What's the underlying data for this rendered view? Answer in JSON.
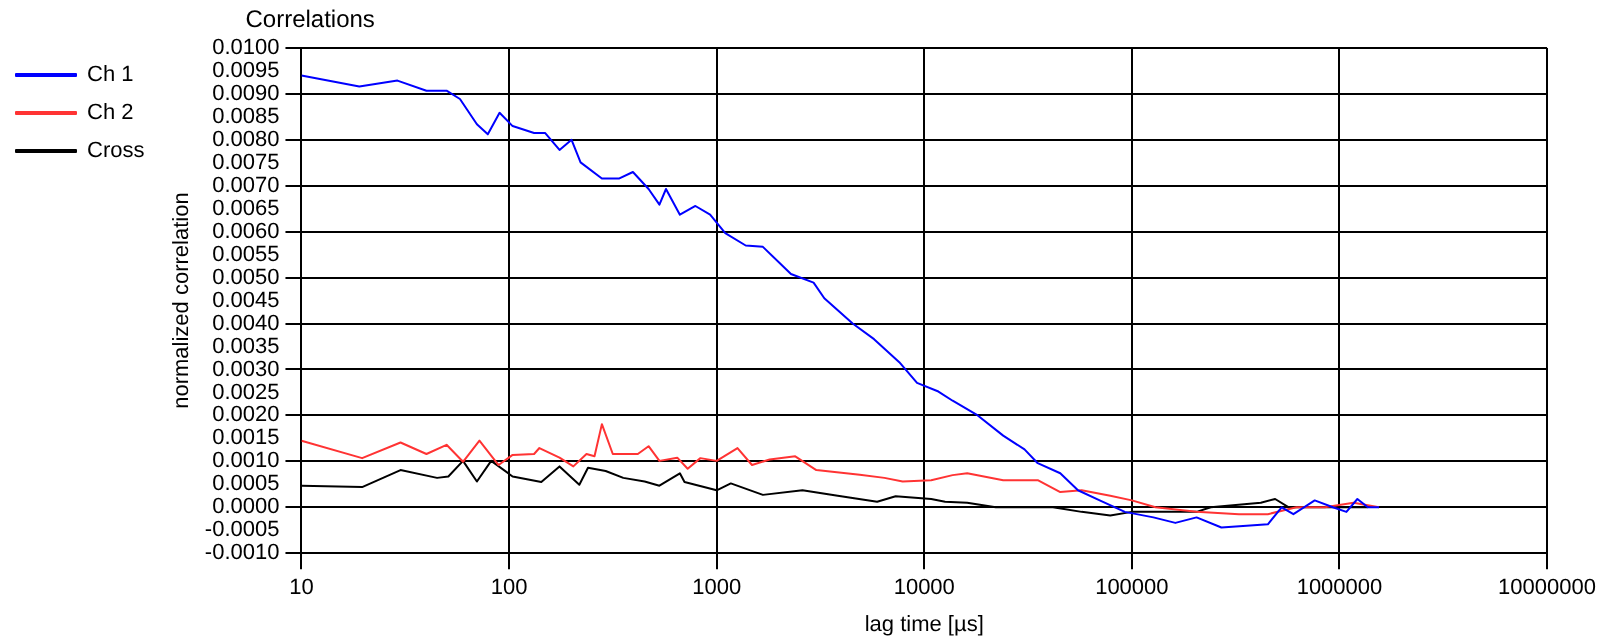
{
  "chart_data": {
    "type": "line",
    "title": "Correlations",
    "xlabel": "lag time [µs]",
    "ylabel": "normalized correlation",
    "log": "x",
    "grid": true,
    "legend": "top left",
    "xlim": [
      10,
      10000000
    ],
    "xticks": [
      10,
      100,
      1000,
      10000,
      100000,
      1000000,
      10000000
    ],
    "ylim": [
      -0.001,
      0.01
    ],
    "yticks": [
      {
        "value": -0.001,
        "label": "-0.0010"
      },
      {
        "value": -0.0005,
        "label": "-0.0005"
      },
      {
        "value": 0,
        "label": "0.0000"
      },
      {
        "value": 0.0005,
        "label": "0.0005"
      },
      {
        "value": 0.001,
        "label": "0.0010"
      },
      {
        "value": 0.0015,
        "label": "0.0015"
      },
      {
        "value": 0.002,
        "label": "0.0020"
      },
      {
        "value": 0.0025,
        "label": "0.0025"
      },
      {
        "value": 0.003,
        "label": "0.0030"
      },
      {
        "value": 0.0035,
        "label": "0.0035"
      },
      {
        "value": 0.004,
        "label": "0.0040"
      },
      {
        "value": 0.0045,
        "label": "0.0045"
      },
      {
        "value": 0.005,
        "label": "0.0050"
      },
      {
        "value": 0.0055,
        "label": "0.0055"
      },
      {
        "value": 0.006,
        "label": "0.0060"
      },
      {
        "value": 0.0065,
        "label": "0.0065"
      },
      {
        "value": 0.007,
        "label": "0.0070"
      },
      {
        "value": 0.0075,
        "label": "0.0075"
      },
      {
        "value": 0.008,
        "label": "0.0080"
      },
      {
        "value": 0.0085,
        "label": "0.0085"
      },
      {
        "value": 0.009,
        "label": "0.0090"
      },
      {
        "value": 0.0095,
        "label": "0.0095"
      },
      {
        "value": 0.01,
        "label": "0.0100"
      }
    ],
    "series": [
      {
        "name": "Ch 1",
        "color": "#0000ff",
        "x": [
          10,
          19,
          29,
          40,
          50,
          58,
          70,
          79,
          90,
          104,
          132,
          149,
          175,
          200,
          221,
          280,
          340,
          395,
          470,
          530,
          570,
          665,
          790,
          930,
          1100,
          1380,
          1670,
          2280,
          2930,
          3300,
          4520,
          5730,
          7580,
          9230,
          11700,
          13700,
          18100,
          24000,
          30400,
          35200,
          45200,
          55000,
          70000,
          92500,
          127000,
          162000,
          205000,
          270000,
          357000,
          452000,
          527000,
          600000,
          760000,
          930000,
          1080000,
          1220000,
          1370000,
          1550000
        ],
        "values": [
          0.0094,
          0.00916,
          0.00929,
          0.00907,
          0.00907,
          0.00889,
          0.00834,
          0.00812,
          0.00859,
          0.0083,
          0.00815,
          0.00815,
          0.00778,
          0.008,
          0.00751,
          0.00716,
          0.00716,
          0.0073,
          0.00693,
          0.00659,
          0.00693,
          0.00637,
          0.00656,
          0.00637,
          0.00597,
          0.0057,
          0.00567,
          0.00508,
          0.00489,
          0.00455,
          0.004,
          0.00366,
          0.00316,
          0.00271,
          0.00252,
          0.00232,
          0.002,
          0.00156,
          0.00126,
          0.00096,
          0.00074,
          0.00037,
          0.00015,
          -0.0001,
          -0.00022,
          -0.00034,
          -0.00022,
          -0.00044,
          -0.0004,
          -0.00037,
          0,
          -0.00015,
          0.00015,
          0,
          -0.0001,
          0.00018,
          0,
          0
        ]
      },
      {
        "name": "Ch 2",
        "color": "#ff3333",
        "x": [
          10,
          19.6,
          30,
          40,
          50,
          60,
          72,
          89,
          104,
          132,
          140,
          175,
          204,
          236,
          258,
          280,
          316,
          417,
          470,
          530,
          646,
          725,
          835,
          1000,
          1260,
          1480,
          1800,
          2390,
          3020,
          4890,
          6430,
          7870,
          10800,
          13700,
          16100,
          24000,
          35200,
          45200,
          57300,
          78700,
          100000,
          130000,
          205000,
          328000,
          452000,
          620000,
          850000,
          1170000,
          1550000
        ],
        "values": [
          0.00145,
          0.00107,
          0.00141,
          0.00116,
          0.00136,
          0.00099,
          0.00145,
          0.00092,
          0.00114,
          0.00116,
          0.00129,
          0.00108,
          0.00089,
          0.00116,
          0.00111,
          0.00181,
          0.00116,
          0.00116,
          0.00133,
          0.00101,
          0.00108,
          0.00084,
          0.00107,
          0.00101,
          0.00129,
          0.00092,
          0.00104,
          0.00111,
          0.00081,
          0.00071,
          0.00064,
          0.00056,
          0.00059,
          0.0007,
          0.00074,
          0.00059,
          0.00059,
          0.00033,
          0.00037,
          0.00025,
          0.00015,
          0,
          -0.0001,
          -0.00015,
          -0.00015,
          0,
          0,
          0.0001,
          0
        ]
      },
      {
        "name": "Cross",
        "color": "#000000",
        "x": [
          10,
          19.6,
          30,
          45,
          51,
          60,
          70,
          82,
          104,
          143,
          175,
          218,
          240,
          292,
          355,
          450,
          530,
          665,
          700,
          1000,
          1170,
          1670,
          2590,
          3830,
          5930,
          7280,
          10800,
          12600,
          16100,
          22100,
          31600,
          41700,
          57300,
          78700,
          100000,
          148000,
          205000,
          240000,
          418000,
          490000,
          570000,
          850000,
          1000000,
          1370000
        ],
        "values": [
          0.00047,
          0.00044,
          0.00081,
          0.00064,
          0.00067,
          0.00101,
          0.00056,
          0.00101,
          0.00067,
          0.00055,
          0.00089,
          0.00049,
          0.00086,
          0.00079,
          0.00064,
          0.00056,
          0.00047,
          0.00074,
          0.00055,
          0.00037,
          0.00052,
          0.00027,
          0.00037,
          0.00025,
          0.00012,
          0.00024,
          0.00018,
          0.00012,
          0.0001,
          0,
          0,
          0,
          -0.0001,
          -0.00018,
          -0.0001,
          -0.0001,
          -0.0001,
          0,
          0.0001,
          0.00018,
          0,
          0,
          0,
          0
        ]
      }
    ]
  }
}
